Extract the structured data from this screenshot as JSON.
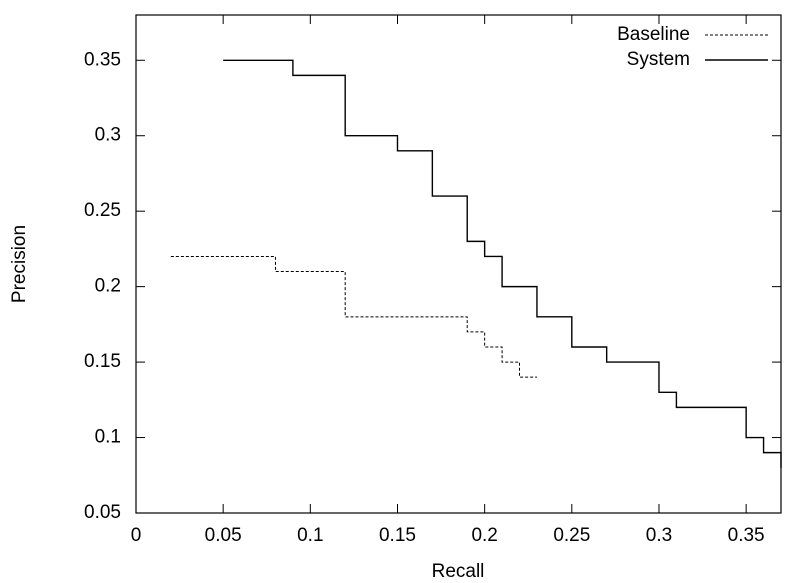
{
  "chart_data": {
    "type": "line",
    "step": true,
    "x_label": "Recall",
    "y_label": "Precision",
    "xlim": [
      0,
      0.37
    ],
    "ylim": [
      0.05,
      0.38
    ],
    "xticks": [
      0,
      0.05,
      0.1,
      0.15,
      0.2,
      0.25,
      0.3,
      0.35
    ],
    "yticks": [
      0.05,
      0.1,
      0.15,
      0.2,
      0.25,
      0.3,
      0.35
    ],
    "grid": false,
    "legend": "top-right",
    "series": [
      {
        "name": "Baseline",
        "color": "#000000",
        "line_style": "dashed",
        "x": [
          0.02,
          0.08,
          0.12,
          0.19,
          0.2,
          0.21,
          0.22,
          0.23
        ],
        "values": [
          0.22,
          0.21,
          0.18,
          0.17,
          0.16,
          0.15,
          0.14,
          0.14
        ]
      },
      {
        "name": "System",
        "color": "#000000",
        "line_style": "solid",
        "x": [
          0.05,
          0.09,
          0.12,
          0.15,
          0.17,
          0.19,
          0.2,
          0.21,
          0.23,
          0.25,
          0.27,
          0.3,
          0.31,
          0.35,
          0.36,
          0.37
        ],
        "values": [
          0.35,
          0.34,
          0.3,
          0.29,
          0.26,
          0.23,
          0.22,
          0.2,
          0.18,
          0.16,
          0.15,
          0.13,
          0.12,
          0.1,
          0.09,
          0.08
        ]
      }
    ]
  }
}
